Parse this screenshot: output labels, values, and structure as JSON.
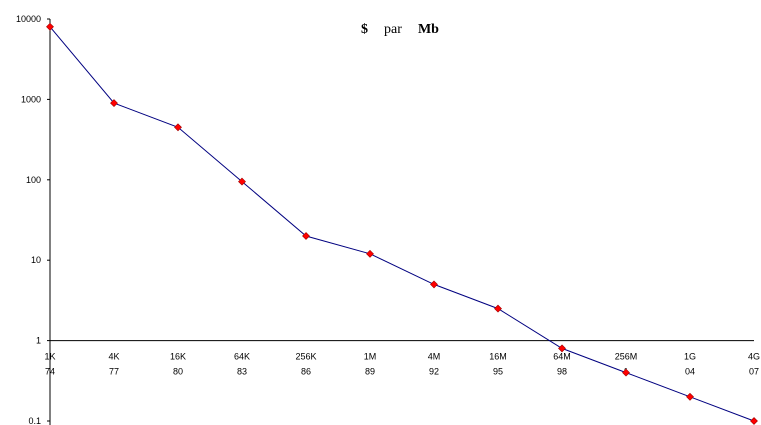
{
  "chart_data": {
    "type": "line",
    "title_parts": [
      "$",
      "par",
      "Mb"
    ],
    "y_scale": "log",
    "ylim": [
      0.1,
      10000
    ],
    "y_ticks": [
      {
        "value": 10000,
        "label": "10000"
      },
      {
        "value": 1000,
        "label": "1000"
      },
      {
        "value": 100,
        "label": "100"
      },
      {
        "value": 10,
        "label": "10"
      },
      {
        "value": 1,
        "label": "1"
      },
      {
        "value": 0.1,
        "label": "0.1"
      }
    ],
    "categories": [
      {
        "top": "1K",
        "bottom": "74"
      },
      {
        "top": "4K",
        "bottom": "77"
      },
      {
        "top": "16K",
        "bottom": "80"
      },
      {
        "top": "64K",
        "bottom": "83"
      },
      {
        "top": "256K",
        "bottom": "86"
      },
      {
        "top": "1M",
        "bottom": "89"
      },
      {
        "top": "4M",
        "bottom": "92"
      },
      {
        "top": "16M",
        "bottom": "95"
      },
      {
        "top": "64M",
        "bottom": "98"
      },
      {
        "top": "256M",
        "bottom": "1"
      },
      {
        "top": "1G",
        "bottom": "04"
      },
      {
        "top": "4G",
        "bottom": "07"
      }
    ],
    "values": [
      8000,
      900,
      450,
      95,
      20,
      12,
      5,
      2.5,
      0.8,
      0.4,
      0.2,
      0.1
    ],
    "line_color": "#000080",
    "marker_color": "#ff0000",
    "x_axis_crosses_at": 1,
    "grid": false,
    "legend": "none"
  }
}
